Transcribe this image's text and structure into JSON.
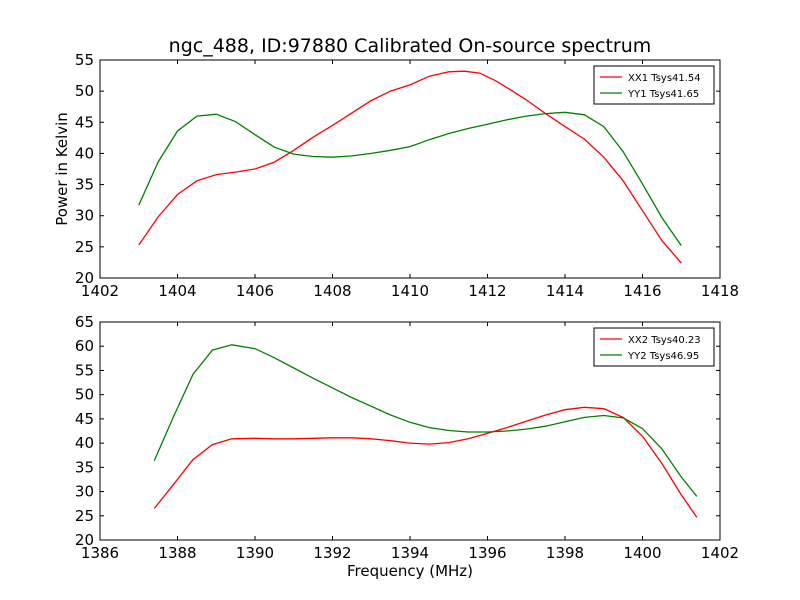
{
  "chart_data": [
    {
      "type": "line",
      "title": "ngc_488, ID:97880 Calibrated On-source spectrum",
      "xlabel": "",
      "ylabel": "Power in Kelvin",
      "xlim": [
        1402,
        1418
      ],
      "ylim": [
        20,
        55
      ],
      "xticks": [
        1402,
        1404,
        1406,
        1408,
        1410,
        1412,
        1414,
        1416,
        1418
      ],
      "yticks": [
        20,
        25,
        30,
        35,
        40,
        45,
        50,
        55
      ],
      "legend_position": "top-right",
      "series": [
        {
          "name": "XX1 Tsys41.54",
          "color": "#ff0000",
          "x": [
            1403.0,
            1403.5,
            1404.0,
            1404.5,
            1405.0,
            1405.5,
            1406.0,
            1406.5,
            1407.0,
            1407.5,
            1408.0,
            1408.5,
            1409.0,
            1409.5,
            1410.0,
            1410.5,
            1411.0,
            1411.4,
            1411.8,
            1412.2,
            1412.6,
            1413.0,
            1413.5,
            1414.0,
            1414.5,
            1415.0,
            1415.5,
            1416.0,
            1416.5,
            1417.0
          ],
          "y": [
            25.3,
            29.8,
            33.4,
            35.6,
            36.6,
            37.0,
            37.5,
            38.6,
            40.5,
            42.6,
            44.5,
            46.5,
            48.5,
            50.0,
            51.0,
            52.4,
            53.1,
            53.2,
            52.9,
            51.7,
            50.2,
            48.6,
            46.4,
            44.3,
            42.3,
            39.4,
            35.6,
            30.8,
            26.0,
            22.4
          ]
        },
        {
          "name": "YY1 Tsys41.65",
          "color": "#008000",
          "x": [
            1403.0,
            1403.5,
            1404.0,
            1404.5,
            1405.0,
            1405.5,
            1406.0,
            1406.5,
            1407.0,
            1407.5,
            1408.0,
            1408.5,
            1409.0,
            1409.5,
            1410.0,
            1410.5,
            1411.0,
            1411.5,
            1412.0,
            1412.5,
            1413.0,
            1413.5,
            1414.0,
            1414.5,
            1415.0,
            1415.5,
            1416.0,
            1416.5,
            1417.0
          ],
          "y": [
            31.7,
            38.6,
            43.6,
            46.0,
            46.3,
            45.1,
            43.0,
            41.0,
            39.9,
            39.5,
            39.4,
            39.6,
            40.0,
            40.5,
            41.1,
            42.2,
            43.2,
            44.0,
            44.7,
            45.4,
            46.0,
            46.4,
            46.6,
            46.2,
            44.3,
            40.3,
            35.1,
            29.7,
            25.2
          ]
        }
      ]
    },
    {
      "type": "line",
      "title": "",
      "xlabel": "Frequency (MHz)",
      "ylabel": "",
      "xlim": [
        1386,
        1402
      ],
      "ylim": [
        20,
        65
      ],
      "xticks": [
        1386,
        1388,
        1390,
        1392,
        1394,
        1396,
        1398,
        1400,
        1402
      ],
      "yticks": [
        20,
        25,
        30,
        35,
        40,
        45,
        50,
        55,
        60,
        65
      ],
      "legend_position": "top-right",
      "series": [
        {
          "name": "XX2 Tsys40.23",
          "color": "#ff0000",
          "x": [
            1387.4,
            1387.9,
            1388.4,
            1388.9,
            1389.4,
            1390.0,
            1390.5,
            1391.0,
            1391.5,
            1392.0,
            1392.5,
            1393.0,
            1393.5,
            1394.0,
            1394.5,
            1395.0,
            1395.5,
            1396.0,
            1396.5,
            1397.0,
            1397.5,
            1398.0,
            1398.5,
            1399.0,
            1399.5,
            1400.0,
            1400.5,
            1401.0,
            1401.4
          ],
          "y": [
            26.5,
            31.5,
            36.6,
            39.7,
            40.9,
            41.0,
            40.9,
            40.9,
            41.0,
            41.1,
            41.1,
            40.9,
            40.5,
            40.0,
            39.8,
            40.1,
            40.9,
            42.0,
            43.2,
            44.5,
            45.8,
            46.9,
            47.4,
            47.1,
            45.3,
            41.4,
            35.8,
            29.3,
            24.7
          ]
        },
        {
          "name": "YY2 Tsys46.95",
          "color": "#008000",
          "x": [
            1387.4,
            1387.9,
            1388.4,
            1388.9,
            1389.4,
            1390.0,
            1390.5,
            1391.0,
            1391.5,
            1392.0,
            1392.5,
            1393.0,
            1393.5,
            1394.0,
            1394.5,
            1395.0,
            1395.5,
            1396.0,
            1396.5,
            1397.0,
            1397.5,
            1398.0,
            1398.5,
            1399.0,
            1399.5,
            1400.0,
            1400.5,
            1401.0,
            1401.4
          ],
          "y": [
            36.4,
            45.5,
            54.2,
            59.2,
            60.3,
            59.5,
            57.6,
            55.5,
            53.4,
            51.4,
            49.4,
            47.6,
            45.8,
            44.3,
            43.2,
            42.6,
            42.3,
            42.3,
            42.5,
            42.9,
            43.5,
            44.4,
            45.3,
            45.7,
            45.2,
            43.0,
            38.8,
            33.0,
            29.0
          ]
        }
      ]
    }
  ]
}
